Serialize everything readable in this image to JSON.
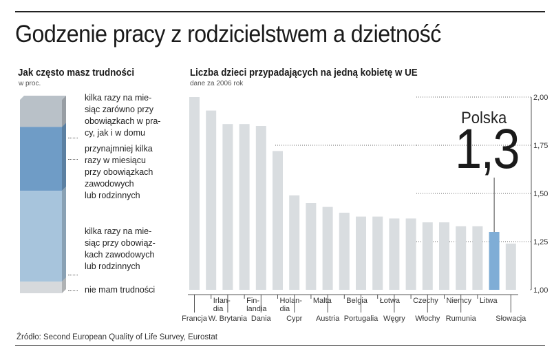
{
  "title": "Godzenie pracy z rodzicielstwem a dzietność",
  "left_panel": {
    "heading": "Jak często masz trudności",
    "unit": "w proc.",
    "segments": [
      {
        "value": 14,
        "label_lines": [
          "kilka razy na mie-",
          "siąc zarówno przy",
          "obowiązkach w pra-",
          "cy, jak i w domu"
        ],
        "color": "#b9c1c8"
      },
      {
        "value": 33,
        "label_lines": [
          "przynajmniej kilka",
          "razy w miesiącu",
          "przy obowiązkach",
          "zawodowych",
          "lub rodzinnych"
        ],
        "color": "#6f9cc6"
      },
      {
        "value": 47,
        "label_lines": [
          "kilka razy na mie-",
          "siąc przy obowiąz-",
          "kach zawodowych",
          "lub rodzinnych"
        ],
        "color": "#a7c4dc"
      },
      {
        "value": 6,
        "label_lines": [
          "nie mam trudności"
        ],
        "color": "#d6d9dc"
      }
    ]
  },
  "right_panel": {
    "heading": "Liczba dzieci przypadających na jedną kobietę w UE",
    "note": "dane za 2006 rok",
    "highlight_country": "Polska",
    "highlight_value_text": "1,3"
  },
  "chart_data": {
    "type": "bar",
    "title": "Liczba dzieci przypadających na jedną kobietę w UE",
    "subtitle": "dane za 2006 rok",
    "categories": [
      "Francja",
      "Irlandia",
      "W. Brytania",
      "Finlandia",
      "Dania",
      "Holandia",
      "Cypr",
      "Malta",
      "Austria",
      "Belgia",
      "Portugalia",
      "Łotwa",
      "Węgry",
      "Czechy",
      "Włochy",
      "Niemcy",
      "Rumunia",
      "Litwa",
      "Polska",
      "Słowacja"
    ],
    "label_lines": [
      [
        "Francja"
      ],
      [
        "Irlan-",
        "dia"
      ],
      [
        "W. Brytania"
      ],
      [
        "Fin-",
        "landia"
      ],
      [
        "Dania"
      ],
      [
        "Holan-",
        "dia"
      ],
      [
        "Cypr"
      ],
      [
        "Malta"
      ],
      [
        "Austria"
      ],
      [
        "Belgia"
      ],
      [
        "Portugalia"
      ],
      [
        "Łotwa"
      ],
      [
        "Węgry"
      ],
      [
        "Czechy"
      ],
      [
        "Włochy"
      ],
      [
        "Niemcy"
      ],
      [
        "Rumunia"
      ],
      [
        "Litwa"
      ],
      [],
      [
        "Słowacja"
      ]
    ],
    "label_levels": [
      2,
      1,
      2,
      1,
      2,
      1,
      2,
      1,
      2,
      1,
      2,
      1,
      2,
      1,
      2,
      1,
      2,
      1,
      0,
      2
    ],
    "values": [
      2.0,
      1.93,
      1.86,
      1.86,
      1.85,
      1.72,
      1.49,
      1.45,
      1.43,
      1.4,
      1.38,
      1.38,
      1.37,
      1.37,
      1.35,
      1.35,
      1.33,
      1.33,
      1.3,
      1.24
    ],
    "highlight_index": 18,
    "ylim": [
      1.0,
      2.0
    ],
    "yticks": [
      "1,00",
      "1,25",
      "1,50",
      "1,75",
      "2,00"
    ],
    "ytick_values": [
      1.0,
      1.25,
      1.5,
      1.75,
      2.0
    ],
    "colors": {
      "bar": "#d9dde0",
      "highlight": "#7fadd6",
      "grid": "#555555"
    }
  },
  "source": "Źródło: Second  European Quality of Life Survey, Eurostat"
}
